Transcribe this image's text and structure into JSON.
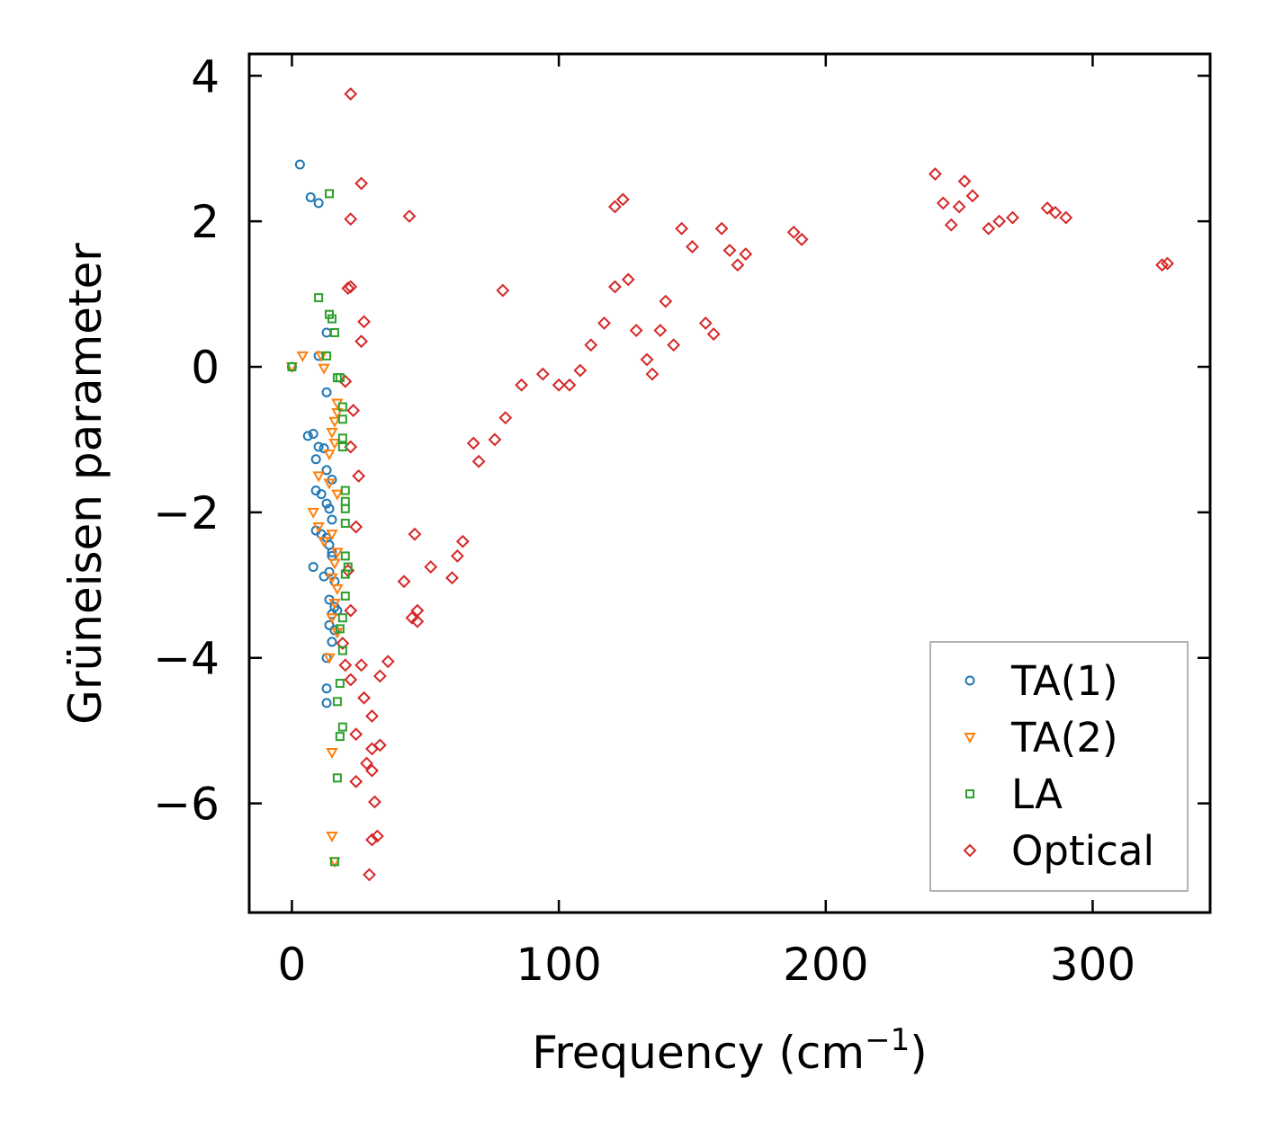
{
  "chart_data": {
    "type": "scatter",
    "title": "",
    "xlabel": "Frequency (cm",
    "xlabel_sup": "−1",
    "xlabel_close": ")",
    "ylabel": "Grüneisen parameter",
    "xlim": [
      -16,
      344
    ],
    "ylim": [
      -7.5,
      4.3
    ],
    "xticks": [
      0,
      100,
      200,
      300
    ],
    "xtick_labels": [
      "0",
      "100",
      "200",
      "300"
    ],
    "yticks": [
      4,
      2,
      0,
      -2,
      -4,
      -6
    ],
    "ytick_labels": [
      "4",
      "2",
      "0",
      "−2",
      "−4",
      "−6"
    ],
    "legend_position": "lower-right",
    "series": [
      {
        "name": "TA(1)",
        "marker": "circle",
        "color": "#1f77b4",
        "points": [
          [
            3,
            2.78
          ],
          [
            7,
            2.33
          ],
          [
            10,
            2.25
          ],
          [
            0,
            0
          ],
          [
            13,
            0.47
          ],
          [
            10,
            0.15
          ],
          [
            13,
            -0.35
          ],
          [
            6,
            -0.95
          ],
          [
            8,
            -0.92
          ],
          [
            9,
            -1.27
          ],
          [
            10,
            -1.1
          ],
          [
            12,
            -1.12
          ],
          [
            13,
            -1.42
          ],
          [
            15,
            -1.55
          ],
          [
            9,
            -1.7
          ],
          [
            11,
            -1.75
          ],
          [
            13,
            -1.88
          ],
          [
            14,
            -1.95
          ],
          [
            15,
            -2.1
          ],
          [
            9,
            -2.25
          ],
          [
            11,
            -2.3
          ],
          [
            13,
            -2.35
          ],
          [
            14,
            -2.45
          ],
          [
            15,
            -2.55
          ],
          [
            15,
            -2.6
          ],
          [
            8,
            -2.75
          ],
          [
            12,
            -2.88
          ],
          [
            14,
            -2.82
          ],
          [
            16,
            -2.95
          ],
          [
            14,
            -3.2
          ],
          [
            16,
            -3.3
          ],
          [
            15,
            -3.4
          ],
          [
            17,
            -3.35
          ],
          [
            14,
            -3.55
          ],
          [
            16,
            -3.62
          ],
          [
            15,
            -3.78
          ],
          [
            13,
            -4.0
          ],
          [
            13,
            -4.42
          ],
          [
            13,
            -4.62
          ]
        ]
      },
      {
        "name": "TA(2)",
        "marker": "triangle",
        "color": "#ff7f0e",
        "points": [
          [
            0,
            0
          ],
          [
            4,
            0.15
          ],
          [
            11,
            0.15
          ],
          [
            12,
            -0.02
          ],
          [
            17,
            -0.5
          ],
          [
            17,
            -0.63
          ],
          [
            16,
            -0.75
          ],
          [
            15,
            -0.9
          ],
          [
            16,
            -1.05
          ],
          [
            14,
            -1.2
          ],
          [
            10,
            -1.5
          ],
          [
            14,
            -1.6
          ],
          [
            17,
            -1.75
          ],
          [
            8,
            -2.0
          ],
          [
            10,
            -2.2
          ],
          [
            15,
            -2.3
          ],
          [
            12,
            -2.4
          ],
          [
            17,
            -2.55
          ],
          [
            16,
            -2.7
          ],
          [
            15,
            -2.9
          ],
          [
            17,
            -3.05
          ],
          [
            16,
            -3.25
          ],
          [
            15,
            -3.45
          ],
          [
            17,
            -3.65
          ],
          [
            14,
            -4.0
          ],
          [
            15,
            -5.3
          ],
          [
            15,
            -6.45
          ],
          [
            16,
            -6.8
          ]
        ]
      },
      {
        "name": "LA",
        "marker": "square",
        "color": "#2ca02c",
        "points": [
          [
            14,
            2.38
          ],
          [
            0,
            0
          ],
          [
            10,
            0.95
          ],
          [
            14,
            0.72
          ],
          [
            15,
            0.66
          ],
          [
            16,
            0.47
          ],
          [
            13,
            0.15
          ],
          [
            18,
            -0.15
          ],
          [
            17,
            -0.15
          ],
          [
            19,
            -0.55
          ],
          [
            19,
            -0.72
          ],
          [
            19,
            -0.98
          ],
          [
            19,
            -1.1
          ],
          [
            20,
            -1.7
          ],
          [
            20,
            -1.85
          ],
          [
            20,
            -1.95
          ],
          [
            20,
            -2.15
          ],
          [
            20,
            -2.6
          ],
          [
            21,
            -2.75
          ],
          [
            20,
            -2.85
          ],
          [
            20,
            -3.15
          ],
          [
            19,
            -3.45
          ],
          [
            18,
            -3.6
          ],
          [
            19,
            -3.9
          ],
          [
            18,
            -4.35
          ],
          [
            17,
            -4.6
          ],
          [
            19,
            -4.95
          ],
          [
            18,
            -5.08
          ],
          [
            17,
            -5.65
          ],
          [
            16,
            -6.8
          ]
        ]
      },
      {
        "name": "Optical",
        "marker": "diamond",
        "color": "#d62728",
        "points": [
          [
            22,
            3.75
          ],
          [
            26,
            2.52
          ],
          [
            22,
            2.03
          ],
          [
            44,
            2.07
          ],
          [
            22,
            1.1
          ],
          [
            21,
            1.08
          ],
          [
            27,
            0.62
          ],
          [
            79,
            1.05
          ],
          [
            26,
            0.35
          ],
          [
            20,
            -0.2
          ],
          [
            23,
            -0.6
          ],
          [
            22,
            -1.1
          ],
          [
            25,
            -1.5
          ],
          [
            24,
            -2.2
          ],
          [
            21,
            -2.8
          ],
          [
            22,
            -3.35
          ],
          [
            19,
            -3.8
          ],
          [
            20,
            -4.1
          ],
          [
            22,
            -4.3
          ],
          [
            26,
            -4.1
          ],
          [
            27,
            -4.55
          ],
          [
            30,
            -4.8
          ],
          [
            24,
            -5.05
          ],
          [
            30,
            -5.25
          ],
          [
            33,
            -5.2
          ],
          [
            28,
            -5.45
          ],
          [
            30,
            -5.55
          ],
          [
            24,
            -5.7
          ],
          [
            31,
            -5.98
          ],
          [
            30,
            -6.5
          ],
          [
            32,
            -6.45
          ],
          [
            29,
            -6.98
          ],
          [
            36,
            -4.05
          ],
          [
            33,
            -4.25
          ],
          [
            47,
            -3.35
          ],
          [
            47,
            -3.5
          ],
          [
            45,
            -3.45
          ],
          [
            42,
            -2.95
          ],
          [
            52,
            -2.75
          ],
          [
            46,
            -2.3
          ],
          [
            60,
            -2.9
          ],
          [
            62,
            -2.6
          ],
          [
            64,
            -2.4
          ],
          [
            70,
            -1.3
          ],
          [
            68,
            -1.05
          ],
          [
            76,
            -1.0
          ],
          [
            80,
            -0.7
          ],
          [
            86,
            -0.25
          ],
          [
            94,
            -0.1
          ],
          [
            100,
            -0.25
          ],
          [
            108,
            -0.05
          ],
          [
            112,
            0.3
          ],
          [
            104,
            -0.25
          ],
          [
            117,
            0.6
          ],
          [
            121,
            1.1
          ],
          [
            121,
            2.2
          ],
          [
            124,
            2.3
          ],
          [
            126,
            1.2
          ],
          [
            129,
            0.5
          ],
          [
            133,
            0.1
          ],
          [
            135,
            -0.1
          ],
          [
            138,
            0.5
          ],
          [
            140,
            0.9
          ],
          [
            143,
            0.3
          ],
          [
            146,
            1.9
          ],
          [
            150,
            1.65
          ],
          [
            155,
            0.6
          ],
          [
            158,
            0.45
          ],
          [
            161,
            1.9
          ],
          [
            164,
            1.6
          ],
          [
            167,
            1.4
          ],
          [
            170,
            1.55
          ],
          [
            188,
            1.85
          ],
          [
            191,
            1.75
          ],
          [
            241,
            2.65
          ],
          [
            244,
            2.25
          ],
          [
            247,
            1.95
          ],
          [
            250,
            2.2
          ],
          [
            252,
            2.55
          ],
          [
            255,
            2.35
          ],
          [
            261,
            1.9
          ],
          [
            265,
            2.0
          ],
          [
            270,
            2.05
          ],
          [
            283,
            2.18
          ],
          [
            286,
            2.12
          ],
          [
            290,
            2.05
          ],
          [
            328,
            1.42
          ],
          [
            326,
            1.4
          ]
        ]
      }
    ]
  }
}
